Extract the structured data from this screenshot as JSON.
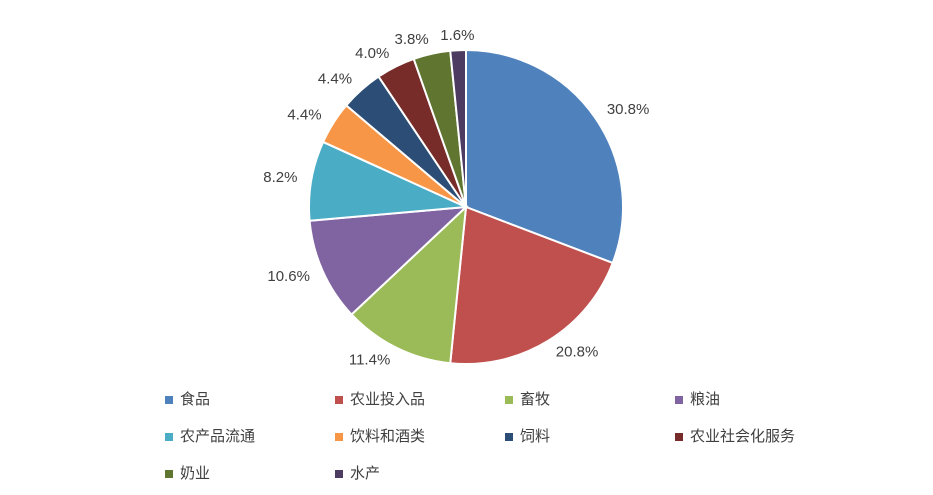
{
  "chart_data": {
    "type": "pie",
    "categories": [
      "食品",
      "农业投入品",
      "畜牧",
      "粮油",
      "农产品流通",
      "饮料和酒类",
      "饲料",
      "农业社会化服务",
      "奶业",
      "水产"
    ],
    "values": [
      30.8,
      20.8,
      11.4,
      10.6,
      8.2,
      4.4,
      4.4,
      4.0,
      3.8,
      1.6
    ],
    "value_labels": [
      "30.8%",
      "20.8%",
      "11.4%",
      "10.6%",
      "8.2%",
      "4.4%",
      "4.4%",
      "4.0%",
      "3.8%",
      "1.6%"
    ],
    "colors": [
      "#4f81bd",
      "#c0504d",
      "#9bbb59",
      "#8064a2",
      "#4bacc6",
      "#f79646",
      "#2c4d75",
      "#772c2a",
      "#5f7530",
      "#4d3b62"
    ],
    "legend": "bottom"
  }
}
